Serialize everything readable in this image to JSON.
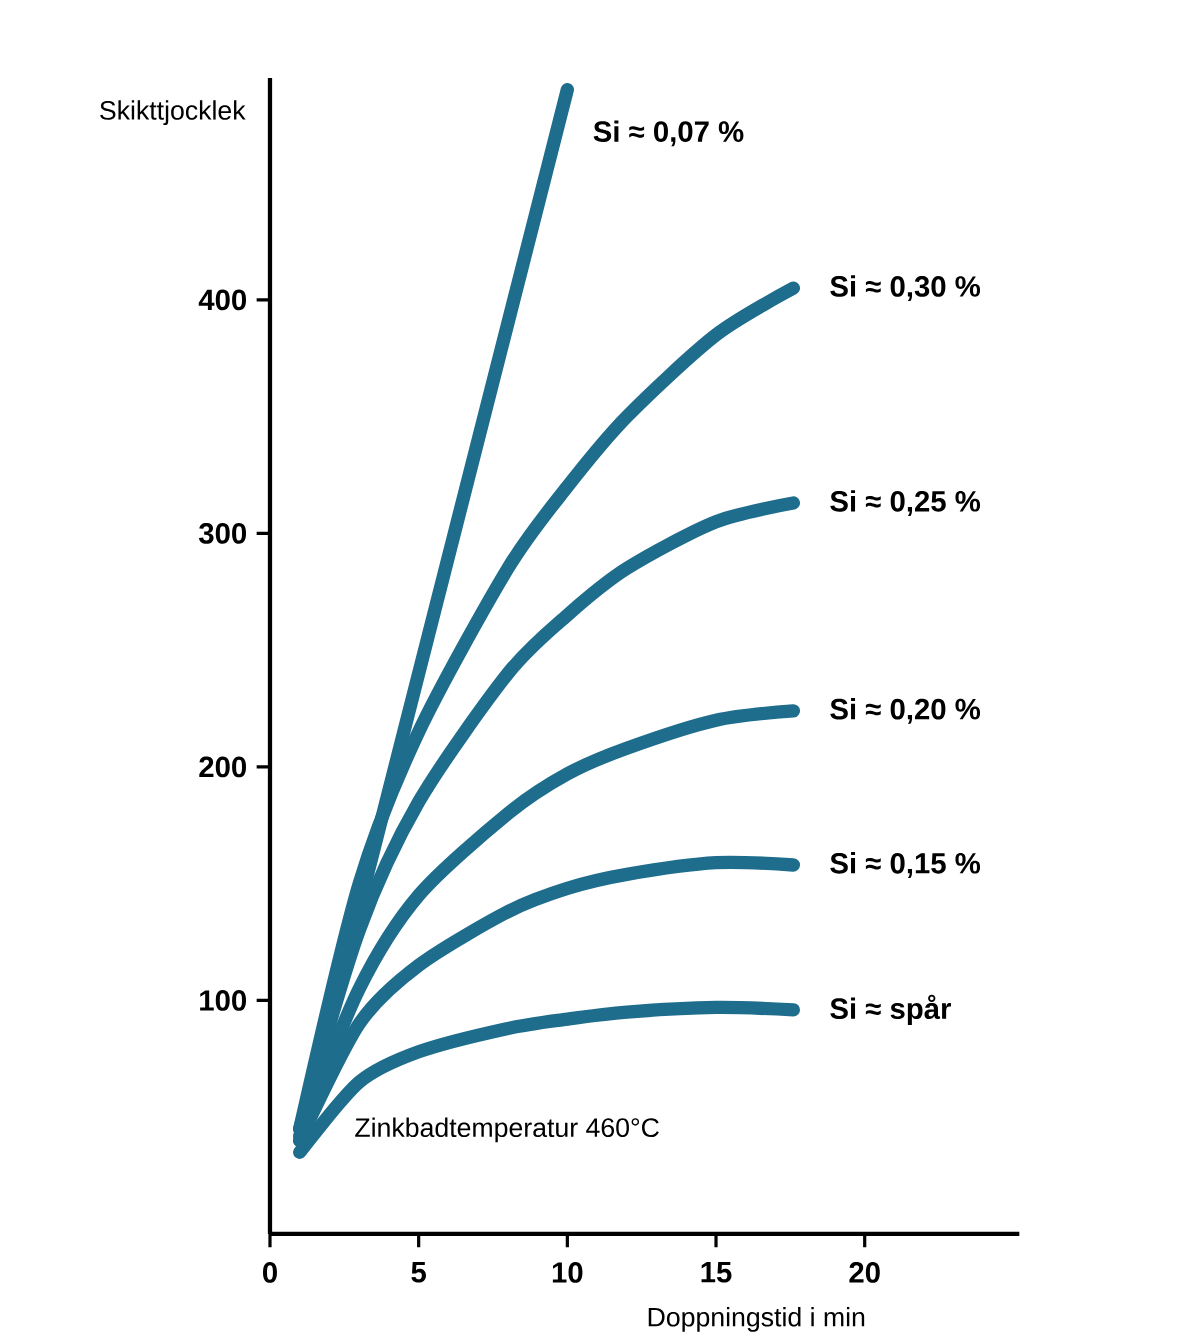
{
  "chart_data": {
    "type": "line",
    "xlabel": "Doppningstid i min",
    "ylabel": "Skikttjocklek",
    "xlim": [
      0,
      25.2
    ],
    "ylim": [
      0,
      495
    ],
    "xticks": [
      0,
      5,
      10,
      15,
      20
    ],
    "yticks": [
      100,
      200,
      300,
      400
    ],
    "grid": false,
    "marker": "none",
    "line_style": "solid",
    "annotations": [
      "Zinkbadtemperatur 460°C"
    ],
    "series": [
      {
        "name": "Si ≈ 0,07 %",
        "color": "#1f6d8c",
        "x": [
          1,
          10
        ],
        "values": [
          40,
          490
        ]
      },
      {
        "name": "Si ≈ 0,30 %",
        "color": "#1f6d8c",
        "x": [
          1,
          3,
          5,
          8,
          10,
          12,
          15,
          17.6
        ],
        "values": [
          45,
          150,
          215,
          285,
          320,
          350,
          385,
          405
        ]
      },
      {
        "name": "Si ≈ 0,25 %",
        "color": "#1f6d8c",
        "x": [
          1,
          3,
          5,
          8,
          10,
          12,
          15,
          17.6
        ],
        "values": [
          45,
          130,
          185,
          240,
          265,
          285,
          305,
          313
        ]
      },
      {
        "name": "Si ≈ 0,20 %",
        "color": "#1f6d8c",
        "x": [
          1,
          3,
          5,
          8,
          10,
          12,
          15,
          17.6
        ],
        "values": [
          42,
          105,
          145,
          180,
          197,
          208,
          220,
          224
        ]
      },
      {
        "name": "Si ≈ 0,15 %",
        "color": "#1f6d8c",
        "x": [
          1,
          3,
          5,
          8,
          10,
          12,
          15,
          17.6
        ],
        "values": [
          40,
          90,
          115,
          138,
          148,
          154,
          159,
          158
        ]
      },
      {
        "name": "Si ≈ spår",
        "color": "#1f6d8c",
        "x": [
          1,
          3,
          5,
          8,
          10,
          12,
          15,
          17.6
        ],
        "values": [
          35,
          65,
          78,
          88,
          92,
          95,
          97,
          96
        ]
      }
    ]
  }
}
